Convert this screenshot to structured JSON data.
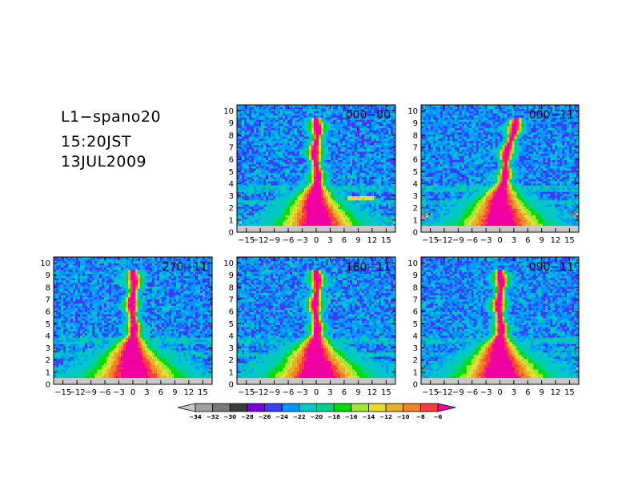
{
  "info": {
    "line1": "L1−spano20",
    "line2": "15:20JST",
    "line3": "13JUL2009"
  },
  "chart_data": {
    "type": "heatmap",
    "x_ticks": [
      "−15",
      "−12",
      "−9",
      "−6",
      "−3",
      "0",
      "3",
      "6",
      "9",
      "12",
      "15"
    ],
    "x_tick_values": [
      -15,
      -12,
      -9,
      -6,
      -3,
      0,
      3,
      6,
      9,
      12,
      15
    ],
    "xlim": [
      -17,
      17
    ],
    "y_ticks": [
      "0",
      "1",
      "2",
      "3",
      "4",
      "5",
      "6",
      "7",
      "8",
      "9",
      "10"
    ],
    "y_tick_values": [
      0,
      1,
      2,
      3,
      4,
      5,
      6,
      7,
      8,
      9,
      10
    ],
    "ylim": [
      0,
      10.5
    ],
    "panels": [
      {
        "title": "000−00",
        "floor": 0.9,
        "extra_band": {
          "x": [
            6.5,
            12.5
          ],
          "y": 2.8
        },
        "spread": 1.6
      },
      {
        "title": "000−11",
        "floor": 1.6,
        "extra_band": null,
        "spread": 1.8
      },
      {
        "title": "270−11",
        "floor": 0.6,
        "extra_band": null,
        "spread": 1.9
      },
      {
        "title": "180−11",
        "floor": 1.3,
        "extra_band": null,
        "spread": 2.0
      },
      {
        "title": "090−11",
        "floor": 1.4,
        "extra_band": null,
        "spread": 1.9
      }
    ],
    "colorbar": {
      "labels": [
        "−34",
        "−32",
        "−30",
        "−28",
        "−26",
        "−24",
        "−22",
        "−20",
        "−18",
        "−16",
        "−14",
        "−12",
        "−10",
        "−8",
        "−6"
      ],
      "values": [
        -34,
        -32,
        -30,
        -28,
        -26,
        -24,
        -22,
        -20,
        -18,
        -16,
        -14,
        -12,
        -10,
        -8,
        -6
      ],
      "colors": [
        "#c8c8c8",
        "#a0a0a0",
        "#787878",
        "#3c3c3c",
        "#7800dc",
        "#3c3cff",
        "#0096ff",
        "#00c8c8",
        "#00d28c",
        "#00dc00",
        "#a0e632",
        "#e6dc32",
        "#e6af2d",
        "#f08228",
        "#fa3c3c",
        "#f000a0"
      ]
    }
  }
}
